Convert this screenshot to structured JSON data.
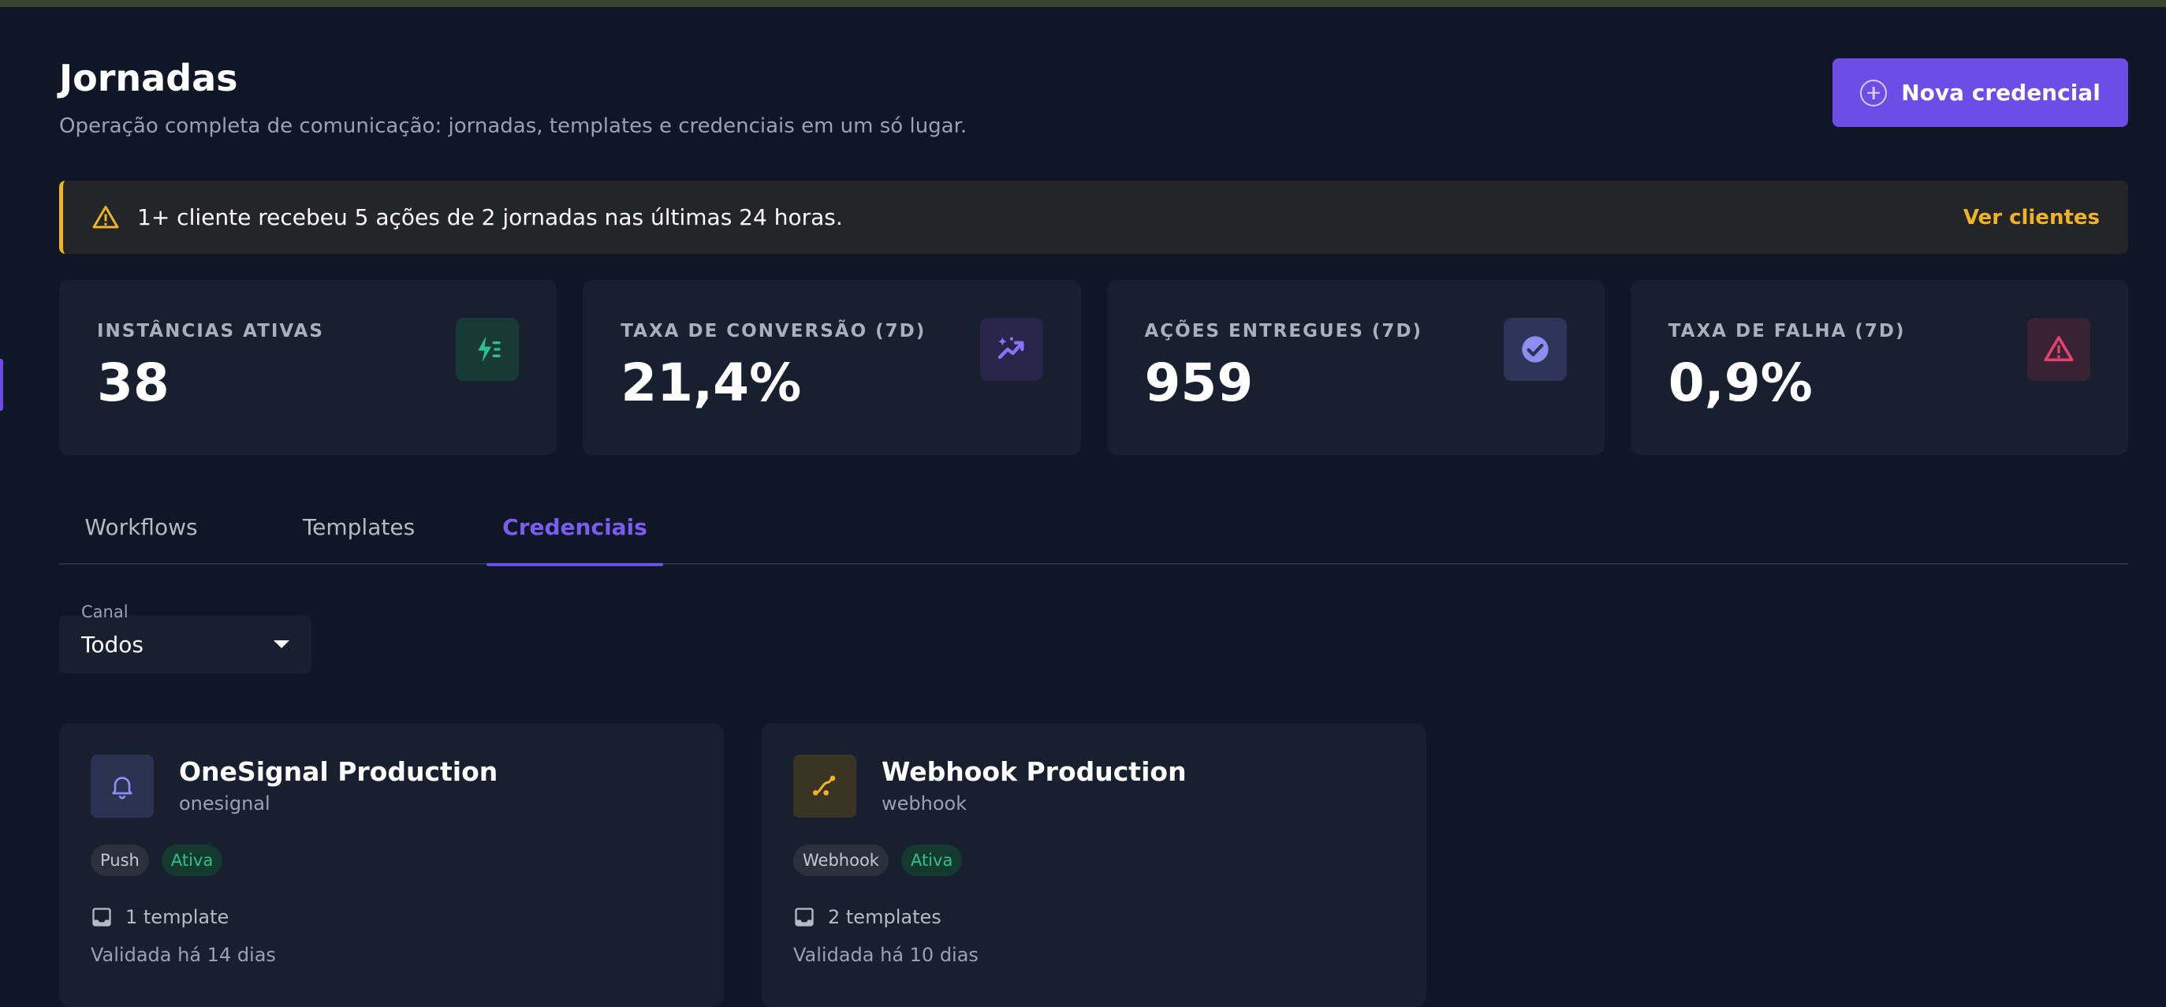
{
  "header": {
    "title": "Jornadas",
    "subtitle": "Operação completa de comunicação: jornadas, templates e credenciais em um só lugar.",
    "primary_button_label": "Nova credencial"
  },
  "alert": {
    "message": "1+ cliente recebeu 5 ações de 2 jornadas nas últimas 24 horas.",
    "link_label": "Ver clientes",
    "accent_color": "#f0b323"
  },
  "stats": [
    {
      "label": "INSTÂNCIAS ATIVAS",
      "value": "38",
      "icon": "lightning-icon",
      "icon_color": "#2ec28a",
      "icon_bg": "#173a36"
    },
    {
      "label": "TAXA DE CONVERSÃO (7D)",
      "value": "21,4%",
      "icon": "trending-sparkle-icon",
      "icon_color": "#8a72f5",
      "icon_bg": "#27264a"
    },
    {
      "label": "AÇÕES ENTREGUES (7D)",
      "value": "959",
      "icon": "check-circle-icon",
      "icon_color": "#8d8ff0",
      "icon_bg": "#2c3458"
    },
    {
      "label": "TAXA DE FALHA (7D)",
      "value": "0,9%",
      "icon": "warning-icon",
      "icon_color": "#e0436b",
      "icon_bg": "#3a2235"
    }
  ],
  "tabs": [
    {
      "label": "Workflows",
      "active": false
    },
    {
      "label": "Templates",
      "active": false
    },
    {
      "label": "Credenciais",
      "active": true
    }
  ],
  "filter": {
    "label": "Canal",
    "value": "Todos"
  },
  "credentials": [
    {
      "name": "OneSignal Production",
      "provider": "onesignal",
      "channel": "Push",
      "status": "Ativa",
      "templates": "1 template",
      "validated": "Validada há 14 dias",
      "icon": "bell-icon",
      "icon_color": "#8d8ff0",
      "icon_bg": "#2a3252"
    },
    {
      "name": "Webhook Production",
      "provider": "webhook",
      "channel": "Webhook",
      "status": "Ativa",
      "templates": "2 templates",
      "validated": "Validada há 10 dias",
      "icon": "webhook-icon",
      "icon_color": "#f0b323",
      "icon_bg": "#3a3424"
    }
  ]
}
